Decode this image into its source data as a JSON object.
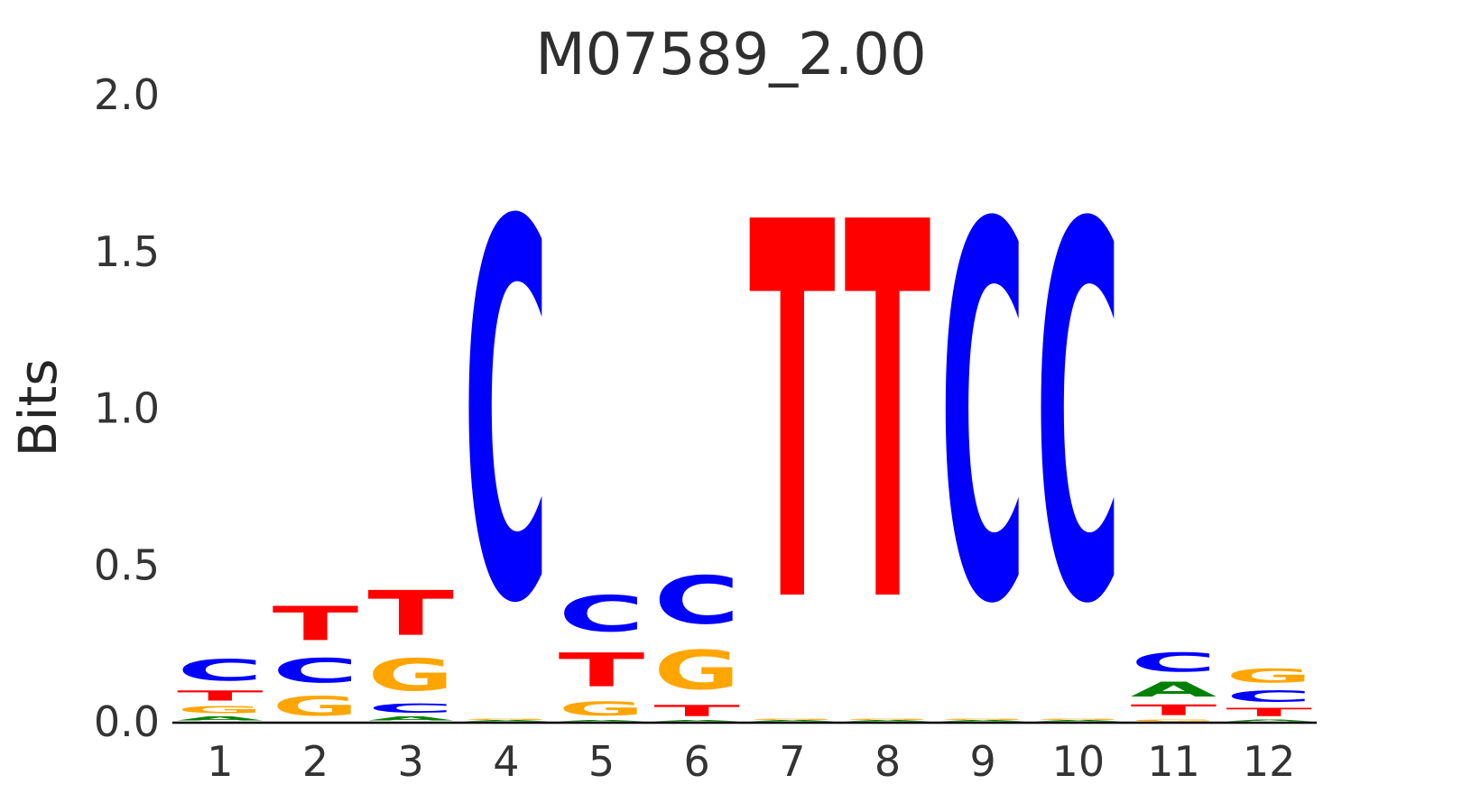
{
  "figure": {
    "background_color": "#ffffff",
    "axis_line_color": "#000000",
    "text_color": "#333333"
  },
  "chart_data": {
    "type": "bar",
    "variant": "sequence_logo",
    "title": "M07589_2.00",
    "xlabel": "",
    "ylabel": "Bits",
    "ylim": [
      0.0,
      2.0
    ],
    "yticks": [
      "0.0",
      "0.5",
      "1.0",
      "1.5",
      "2.0"
    ],
    "ytick_values": [
      0.0,
      0.5,
      1.0,
      1.5,
      2.0
    ],
    "xticks": [
      "1",
      "2",
      "3",
      "4",
      "5",
      "6",
      "7",
      "8",
      "9",
      "10",
      "11",
      "12"
    ],
    "grid": false,
    "legend": "none",
    "letter_colors": {
      "A": "#008000",
      "C": "#0000FF",
      "G": "#FFA500",
      "T": "#FF0000"
    },
    "consensus": "NNNCNCTTCCNN",
    "positions": [
      {
        "position": 1,
        "stack": [
          {
            "letter": "A",
            "bits": 0.02
          },
          {
            "letter": "G",
            "bits": 0.037
          },
          {
            "letter": "T",
            "bits": 0.052
          },
          {
            "letter": "C",
            "bits": 0.11
          }
        ]
      },
      {
        "position": 2,
        "stack": [
          {
            "letter": "G",
            "bits": 0.1
          },
          {
            "letter": "C",
            "bits": 0.125
          },
          {
            "letter": "T",
            "bits": 0.175
          }
        ]
      },
      {
        "position": 3,
        "stack": [
          {
            "letter": "A",
            "bits": 0.02
          },
          {
            "letter": "C",
            "bits": 0.046
          },
          {
            "letter": "G",
            "bits": 0.164
          },
          {
            "letter": "T",
            "bits": 0.23
          }
        ]
      },
      {
        "position": 4,
        "stack": [
          {
            "letter": "A",
            "bits": 0.005
          },
          {
            "letter": "G",
            "bits": 0.005
          },
          {
            "letter": "C",
            "bits": 1.93
          }
        ]
      },
      {
        "position": 5,
        "stack": [
          {
            "letter": "A",
            "bits": 0.006
          },
          {
            "letter": "G",
            "bits": 0.072
          },
          {
            "letter": "T",
            "bits": 0.173
          },
          {
            "letter": "C",
            "bits": 0.185
          }
        ]
      },
      {
        "position": 6,
        "stack": [
          {
            "letter": "A",
            "bits": 0.006
          },
          {
            "letter": "T",
            "bits": 0.058
          },
          {
            "letter": "G",
            "bits": 0.2
          },
          {
            "letter": "C",
            "bits": 0.245
          }
        ]
      },
      {
        "position": 7,
        "stack": [
          {
            "letter": "A",
            "bits": 0.005
          },
          {
            "letter": "G",
            "bits": 0.005
          },
          {
            "letter": "T",
            "bits": 1.93
          }
        ]
      },
      {
        "position": 8,
        "stack": [
          {
            "letter": "A",
            "bits": 0.005
          },
          {
            "letter": "G",
            "bits": 0.005
          },
          {
            "letter": "T",
            "bits": 1.93
          }
        ]
      },
      {
        "position": 9,
        "stack": [
          {
            "letter": "A",
            "bits": 0.005
          },
          {
            "letter": "G",
            "bits": 0.005
          },
          {
            "letter": "C",
            "bits": 1.92
          }
        ]
      },
      {
        "position": 10,
        "stack": [
          {
            "letter": "A",
            "bits": 0.005
          },
          {
            "letter": "G",
            "bits": 0.005
          },
          {
            "letter": "C",
            "bits": 1.92
          }
        ]
      },
      {
        "position": 11,
        "stack": [
          {
            "letter": "G",
            "bits": 0.01
          },
          {
            "letter": "T",
            "bits": 0.055
          },
          {
            "letter": "A",
            "bits": 0.075
          },
          {
            "letter": "C",
            "bits": 0.098
          }
        ]
      },
      {
        "position": 12,
        "stack": [
          {
            "letter": "A",
            "bits": 0.009
          },
          {
            "letter": "T",
            "bits": 0.043
          },
          {
            "letter": "C",
            "bits": 0.058
          },
          {
            "letter": "G",
            "bits": 0.072
          }
        ]
      }
    ]
  }
}
